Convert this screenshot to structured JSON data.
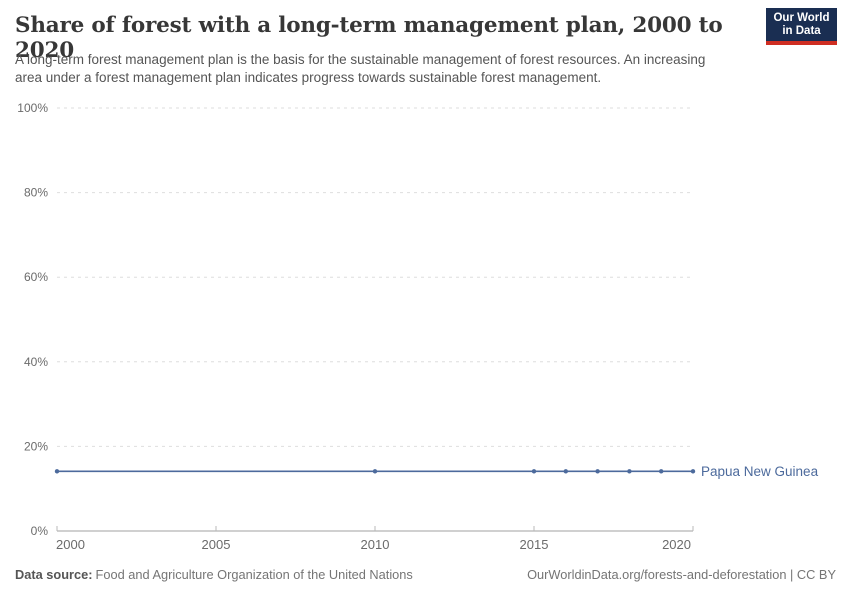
{
  "header": {
    "title": "Share of forest with a long-term management plan, 2000 to 2020",
    "subtitle": "A long-term forest management plan is the basis for the sustainable management of forest resources. An increasing area under a forest management plan indicates progress towards sustainable forest management.",
    "logo_line1": "Our World",
    "logo_line2": "in Data"
  },
  "chart_data": {
    "type": "line",
    "title": "Share of forest with a long-term management plan, 2000 to 2020",
    "x": {
      "label": "",
      "range": [
        2000,
        2020
      ],
      "ticks": [
        2000,
        2005,
        2010,
        2015,
        2020
      ]
    },
    "y": {
      "label": "",
      "range": [
        0,
        100
      ],
      "ticks": [
        0,
        20,
        40,
        60,
        80,
        100
      ],
      "suffix": "%",
      "grid": "dashed"
    },
    "series": [
      {
        "name": "Papua New Guinea",
        "color": "#4C6A9C",
        "points": [
          {
            "year": 2000,
            "value": 14.1
          },
          {
            "year": 2010,
            "value": 14.1
          },
          {
            "year": 2015,
            "value": 14.1
          },
          {
            "year": 2016,
            "value": 14.1
          },
          {
            "year": 2017,
            "value": 14.1
          },
          {
            "year": 2018,
            "value": 14.1
          },
          {
            "year": 2019,
            "value": 14.1
          },
          {
            "year": 2020,
            "value": 14.1
          }
        ]
      }
    ],
    "legend_position": "right-of-line-end"
  },
  "footer": {
    "datasource_label": "Data source:",
    "datasource_value": "Food and Agriculture Organization of the United Nations",
    "attribution": "OurWorldinData.org/forests-and-deforestation | CC BY"
  },
  "colors": {
    "accent_line": "#4C6A9C",
    "logo_bg": "#1a2e52",
    "logo_stripe": "#cf2e22",
    "grid": "#dedede",
    "axis": "#a1a1a1",
    "tick_label": "#6b6b6b",
    "title_text": "#373737",
    "subtitle_text": "#555555"
  }
}
